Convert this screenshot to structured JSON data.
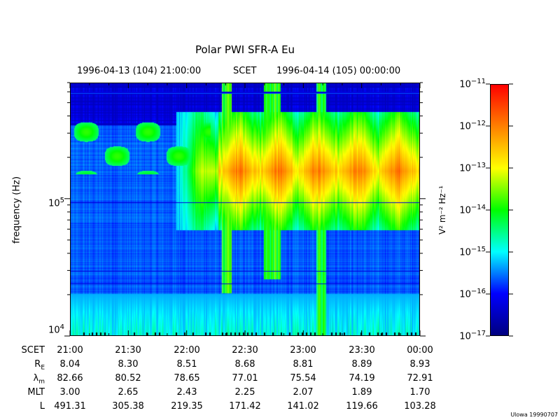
{
  "title": "Polar PWI SFR-A Eu",
  "header": {
    "start": "1996-04-13 (104) 21:00:00",
    "scet": "SCET",
    "end": "1996-04-14 (105) 00:00:00"
  },
  "chart_data": {
    "type": "heatmap",
    "title": "Polar PWI SFR-A Eu",
    "xlabel": "SCET",
    "ylabel": "frequency (Hz)",
    "yscale": "log",
    "ylim": [
      10000,
      700000
    ],
    "ytick_labels": [
      {
        "base": "10",
        "exp": "5",
        "value": 100000
      },
      {
        "base": "10",
        "exp": "4",
        "value": 10000
      }
    ],
    "x_categories": [
      "21:00",
      "21:30",
      "22:00",
      "22:30",
      "23:00",
      "23:30",
      "00:00"
    ],
    "ephemeris": [
      {
        "label": "R",
        "sub": "E",
        "values": [
          "8.04",
          "8.30",
          "8.51",
          "8.68",
          "8.81",
          "8.89",
          "8.93"
        ]
      },
      {
        "label": "λ",
        "sub": "m",
        "values": [
          "82.66",
          "80.52",
          "78.65",
          "77.01",
          "75.54",
          "74.19",
          "72.91"
        ]
      },
      {
        "label": "MLT",
        "sub": "",
        "values": [
          "3.00",
          "2.65",
          "2.43",
          "2.25",
          "2.07",
          "1.89",
          "1.70"
        ]
      },
      {
        "label": "L",
        "sub": "",
        "values": [
          "491.31",
          "305.38",
          "219.35",
          "171.42",
          "141.02",
          "119.66",
          "103.28"
        ]
      }
    ],
    "colorbar": {
      "scale": "log",
      "range": [
        1e-17,
        1e-11
      ],
      "ticks": [
        {
          "base": "10",
          "exp": "−11"
        },
        {
          "base": "10",
          "exp": "−12"
        },
        {
          "base": "10",
          "exp": "−13"
        },
        {
          "base": "10",
          "exp": "−14"
        },
        {
          "base": "10",
          "exp": "−15"
        },
        {
          "base": "10",
          "exp": "−16"
        },
        {
          "base": "10",
          "exp": "−17"
        }
      ],
      "label": "V² m⁻² Hz⁻¹",
      "colors": [
        "#00007f",
        "#0000ff",
        "#00ffff",
        "#00ff00",
        "#ffff00",
        "#ff8000",
        "#ff0000"
      ]
    }
  },
  "credit": "Ulowa 19990707"
}
